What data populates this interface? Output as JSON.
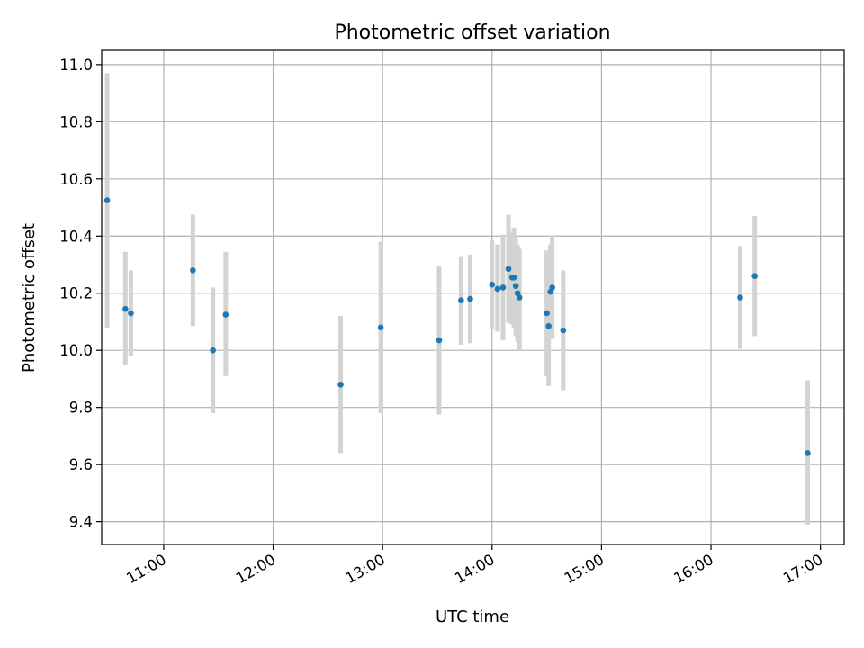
{
  "chart_data": {
    "type": "scatter",
    "title": "Photometric offset variation",
    "xlabel": "UTC time",
    "ylabel": "Photometric offset",
    "x_axis_type": "time",
    "xlim": [
      "10:26",
      "17:13"
    ],
    "ylim": [
      9.32,
      11.05
    ],
    "x_ticks": [
      "11:00",
      "12:00",
      "13:00",
      "14:00",
      "15:00",
      "16:00",
      "17:00"
    ],
    "y_ticks": [
      "9.4",
      "9.6",
      "9.8",
      "10.0",
      "10.2",
      "10.4",
      "10.6",
      "10.8",
      "11.0"
    ],
    "grid": true,
    "marker_color": "#1f77b4",
    "errorbar_color": "#d3d3d3",
    "points": [
      {
        "t": "10:29",
        "y": 10.525,
        "lo": 10.08,
        "hi": 10.97
      },
      {
        "t": "10:39",
        "y": 10.145,
        "lo": 9.95,
        "hi": 10.345
      },
      {
        "t": "10:42",
        "y": 10.13,
        "lo": 9.98,
        "hi": 10.28
      },
      {
        "t": "11:16",
        "y": 10.28,
        "lo": 10.085,
        "hi": 10.475
      },
      {
        "t": "11:27",
        "y": 10.0,
        "lo": 9.78,
        "hi": 10.22
      },
      {
        "t": "11:34",
        "y": 10.125,
        "lo": 9.91,
        "hi": 10.345
      },
      {
        "t": "12:37",
        "y": 9.88,
        "lo": 9.64,
        "hi": 10.12
      },
      {
        "t": "12:59",
        "y": 10.08,
        "lo": 9.78,
        "hi": 10.38
      },
      {
        "t": "13:31",
        "y": 10.035,
        "lo": 9.775,
        "hi": 10.295
      },
      {
        "t": "13:43",
        "y": 10.175,
        "lo": 10.02,
        "hi": 10.33
      },
      {
        "t": "13:48",
        "y": 10.18,
        "lo": 10.025,
        "hi": 10.335
      },
      {
        "t": "14:00",
        "y": 10.23,
        "lo": 10.075,
        "hi": 10.385
      },
      {
        "t": "14:03",
        "y": 10.215,
        "lo": 10.065,
        "hi": 10.37
      },
      {
        "t": "14:06",
        "y": 10.22,
        "lo": 10.035,
        "hi": 10.405
      },
      {
        "t": "14:09",
        "y": 10.285,
        "lo": 10.095,
        "hi": 10.475
      },
      {
        "t": "14:11",
        "y": 10.255,
        "lo": 10.09,
        "hi": 10.415
      },
      {
        "t": "14:12",
        "y": 10.255,
        "lo": 10.08,
        "hi": 10.43
      },
      {
        "t": "14:13",
        "y": 10.225,
        "lo": 10.05,
        "hi": 10.395
      },
      {
        "t": "14:14",
        "y": 10.2,
        "lo": 10.03,
        "hi": 10.37
      },
      {
        "t": "14:15",
        "y": 10.185,
        "lo": 10.0,
        "hi": 10.355
      },
      {
        "t": "14:30",
        "y": 10.13,
        "lo": 9.91,
        "hi": 10.35
      },
      {
        "t": "14:31",
        "y": 10.085,
        "lo": 9.875,
        "hi": 10.3
      },
      {
        "t": "14:32",
        "y": 10.205,
        "lo": 10.04,
        "hi": 10.37
      },
      {
        "t": "14:33",
        "y": 10.22,
        "lo": 10.04,
        "hi": 10.4
      },
      {
        "t": "14:39",
        "y": 10.07,
        "lo": 9.86,
        "hi": 10.28
      },
      {
        "t": "16:16",
        "y": 10.185,
        "lo": 10.005,
        "hi": 10.365
      },
      {
        "t": "16:24",
        "y": 10.26,
        "lo": 10.05,
        "hi": 10.47
      },
      {
        "t": "16:53",
        "y": 9.64,
        "lo": 9.39,
        "hi": 9.895
      }
    ]
  }
}
